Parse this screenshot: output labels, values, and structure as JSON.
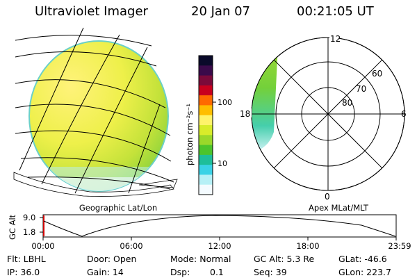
{
  "header": {
    "instrument": "Ultraviolet Imager",
    "date": "20 Jan 07",
    "time": "00:21:05 UT"
  },
  "colorbar": {
    "unit_label": "photon cm⁻²s⁻¹",
    "ticks": [
      "100",
      "10"
    ],
    "colors": [
      "#0a0a2a",
      "#3a0a4a",
      "#7a0a3a",
      "#c8001e",
      "#ff6a00",
      "#ffbe00",
      "#fff36a",
      "#d8ec2a",
      "#9ad82a",
      "#4cc42c",
      "#1ebe9a",
      "#3ad2e6",
      "#b6f0f6",
      "#f4fbff"
    ]
  },
  "left_panel": {
    "caption": "Geographic Lat/Lon"
  },
  "right_panel": {
    "caption": "Apex MLat/MLT",
    "mlt_labels": [
      "12",
      "18",
      "6",
      "0"
    ],
    "mlat_labels": [
      "60",
      "70",
      "80"
    ]
  },
  "timeline": {
    "ylabel": "GC Alt",
    "yticks": [
      "9.0",
      "1.8"
    ],
    "xticks": [
      "00:00",
      "06:00",
      "12:00",
      "18:00",
      "23:59"
    ]
  },
  "status": {
    "row1": {
      "filter": "Flt: LBHL",
      "door": "Door: Open",
      "mode": "Mode: Normal",
      "gc_alt": "GC Alt: 5.3 Re",
      "glat": "GLat: -46.6"
    },
    "row2": {
      "ip": "IP: 36.0",
      "gain": "Gain: 14",
      "dsp_label": "Dsp:",
      "dsp_value": "0.1",
      "seq": "Seq: 39",
      "glon": "GLon: 223.7"
    }
  }
}
